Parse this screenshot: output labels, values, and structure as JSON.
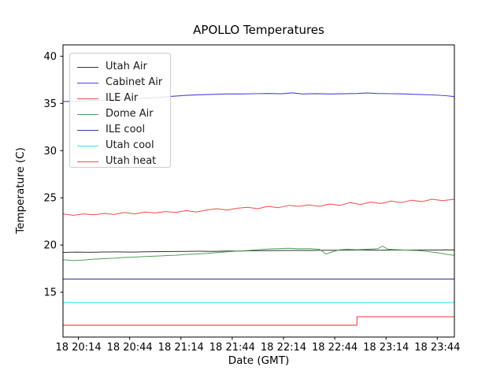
{
  "chart_data": {
    "type": "line",
    "title": "APOLLO Temperatures",
    "xlabel": "Date (GMT)",
    "ylabel": "Temperature (C)",
    "x_axis_note": "x values are minutes after 18 20:05 GMT",
    "xlim": [
      0,
      229
    ],
    "ylim": [
      10.25,
      41.2
    ],
    "grid": false,
    "legend_position": "upper left",
    "background_color": "#ffffff",
    "spine_color": "#000000",
    "x_ticks": [
      {
        "t": 9,
        "label": "18 20:14"
      },
      {
        "t": 39,
        "label": "18 20:44"
      },
      {
        "t": 69,
        "label": "18 21:14"
      },
      {
        "t": 99,
        "label": "18 21:44"
      },
      {
        "t": 129,
        "label": "18 22:14"
      },
      {
        "t": 159,
        "label": "18 22:44"
      },
      {
        "t": 189,
        "label": "18 23:14"
      },
      {
        "t": 219,
        "label": "18 23:44"
      }
    ],
    "y_ticks": [
      {
        "v": 15,
        "label": "15"
      },
      {
        "v": 20,
        "label": "20"
      },
      {
        "v": 25,
        "label": "25"
      },
      {
        "v": 30,
        "label": "30"
      },
      {
        "v": 35,
        "label": "35"
      },
      {
        "v": 40,
        "label": "40"
      }
    ],
    "series": [
      {
        "name": "Utah Air",
        "color": "#333333",
        "width": 1.0,
        "x": [
          0,
          8,
          16,
          24,
          32,
          40,
          48,
          56,
          64,
          72,
          80,
          88,
          96,
          104,
          112,
          120,
          128,
          136,
          144,
          152,
          160,
          168,
          176,
          184,
          192,
          200,
          208,
          216,
          224,
          229
        ],
        "y": [
          19.22,
          19.25,
          19.23,
          19.26,
          19.27,
          19.25,
          19.28,
          19.3,
          19.31,
          19.33,
          19.34,
          19.33,
          19.36,
          19.37,
          19.39,
          19.41,
          19.42,
          19.43,
          19.42,
          19.44,
          19.45,
          19.46,
          19.47,
          19.45,
          19.47,
          19.46,
          19.48,
          19.47,
          19.49,
          19.48
        ]
      },
      {
        "name": "Cabinet Air",
        "color": "#4646dd",
        "width": 1.1,
        "x": [
          0,
          8,
          16,
          24,
          32,
          40,
          48,
          56,
          64,
          72,
          80,
          88,
          96,
          104,
          112,
          120,
          128,
          134,
          140,
          148,
          156,
          164,
          172,
          178,
          184,
          192,
          200,
          208,
          216,
          224,
          229
        ],
        "y": [
          35.2,
          35.24,
          35.3,
          35.33,
          35.4,
          35.48,
          35.55,
          35.63,
          35.75,
          35.85,
          35.92,
          35.96,
          36.0,
          36.0,
          36.03,
          36.05,
          36.02,
          36.12,
          36.0,
          36.04,
          36.0,
          36.02,
          36.05,
          36.1,
          36.05,
          36.03,
          36.0,
          35.95,
          35.9,
          35.82,
          35.72
        ]
      },
      {
        "name": "ILE Air",
        "color": "#ee4b4b",
        "width": 1.0,
        "x": [
          0,
          6,
          12,
          18,
          24,
          30,
          36,
          42,
          48,
          54,
          60,
          66,
          72,
          78,
          84,
          90,
          96,
          102,
          108,
          114,
          120,
          126,
          132,
          138,
          144,
          150,
          156,
          162,
          168,
          174,
          180,
          186,
          192,
          198,
          204,
          210,
          216,
          222,
          229
        ],
        "y": [
          23.3,
          23.15,
          23.3,
          23.2,
          23.35,
          23.25,
          23.45,
          23.3,
          23.5,
          23.4,
          23.55,
          23.45,
          23.65,
          23.5,
          23.7,
          23.85,
          23.7,
          23.9,
          24.0,
          23.85,
          24.1,
          23.95,
          24.2,
          24.1,
          24.25,
          24.1,
          24.35,
          24.2,
          24.5,
          24.3,
          24.55,
          24.4,
          24.65,
          24.5,
          24.75,
          24.6,
          24.85,
          24.7,
          24.85
        ]
      },
      {
        "name": "Dome Air",
        "color": "#4da157",
        "width": 1.0,
        "x": [
          0,
          6,
          12,
          18,
          24,
          30,
          36,
          42,
          48,
          54,
          60,
          66,
          72,
          78,
          84,
          90,
          96,
          102,
          108,
          114,
          120,
          126,
          132,
          138,
          144,
          150,
          154,
          158,
          162,
          166,
          172,
          178,
          184,
          187,
          190,
          196,
          202,
          208,
          214,
          220,
          225,
          229
        ],
        "y": [
          18.45,
          18.35,
          18.4,
          18.5,
          18.55,
          18.6,
          18.68,
          18.72,
          18.78,
          18.82,
          18.88,
          18.92,
          19.0,
          19.05,
          19.12,
          19.2,
          19.28,
          19.35,
          19.42,
          19.5,
          19.58,
          19.62,
          19.65,
          19.6,
          19.62,
          19.55,
          19.05,
          19.3,
          19.5,
          19.55,
          19.5,
          19.55,
          19.6,
          19.88,
          19.55,
          19.5,
          19.45,
          19.4,
          19.3,
          19.15,
          19.0,
          18.9
        ]
      },
      {
        "name": "ILE cool",
        "color": "#3d3d8f",
        "width": 1.2,
        "x": [
          0,
          229
        ],
        "y": [
          16.4,
          16.4
        ]
      },
      {
        "name": "Utah cool",
        "color": "#3ce3ee",
        "width": 1.2,
        "x": [
          0,
          229
        ],
        "y": [
          13.9,
          13.9
        ]
      },
      {
        "name": "Utah heat",
        "color": "#ef5050",
        "width": 1.2,
        "x": [
          0,
          172,
          172,
          229
        ],
        "y": [
          11.5,
          11.5,
          12.4,
          12.4
        ]
      }
    ]
  }
}
